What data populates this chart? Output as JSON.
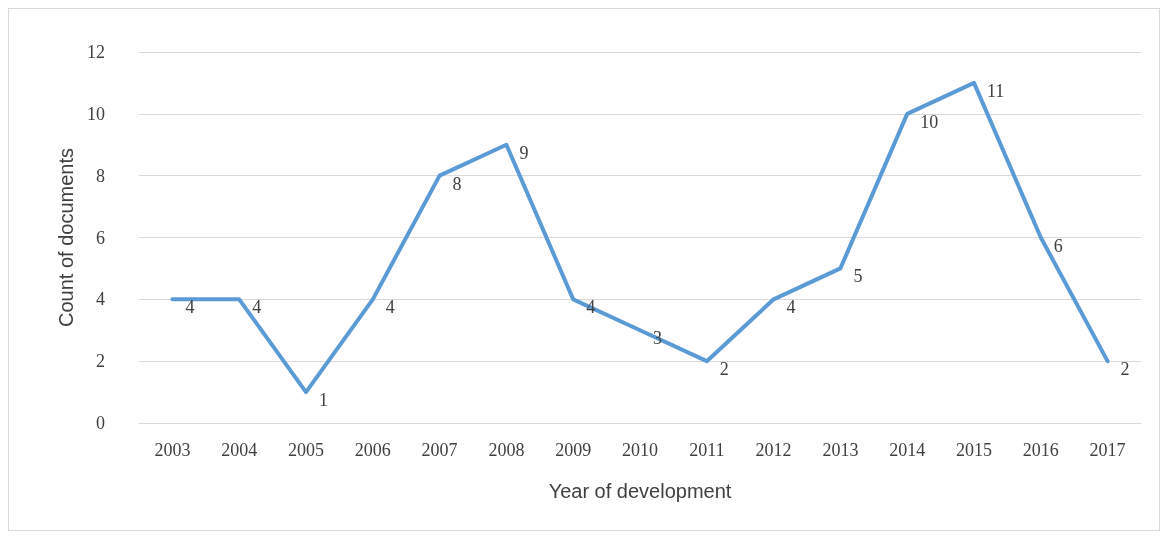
{
  "chart_data": {
    "type": "line",
    "xlabel": "Year of development",
    "ylabel": "Count of documents",
    "categories": [
      "2003",
      "2004",
      "2005",
      "2006",
      "2007",
      "2008",
      "2009",
      "2010",
      "2011",
      "2012",
      "2013",
      "2014",
      "2015",
      "2016",
      "2017"
    ],
    "series": [
      {
        "color": "#5b9bd5",
        "values": [
          4,
          4,
          1,
          4,
          8,
          9,
          4,
          3,
          2,
          4,
          5,
          10,
          11,
          6,
          2
        ]
      }
    ],
    "ylim": [
      0,
      12
    ],
    "yticks": [
      0,
      2,
      4,
      6,
      8,
      10,
      12
    ],
    "grid": "y",
    "data_labels": true,
    "marker": "none",
    "line_style": "solid"
  }
}
